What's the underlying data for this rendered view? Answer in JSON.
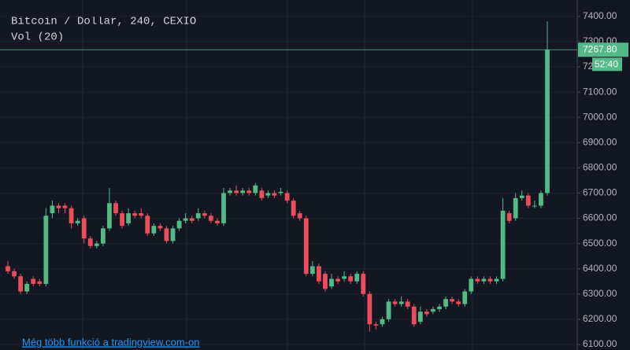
{
  "chart_data": {
    "type": "candlestick",
    "title": "Bitcoin / Dollar, 240, CEXIO",
    "subtitle": "Vol (20)",
    "footer": "Még több funkció a tradingview.com-on",
    "last_price_label": "7267.80",
    "countdown": "52:40",
    "up_color": "#53b987",
    "down_color": "#eb4d5c",
    "ylim": [
      6078,
      7465
    ],
    "yticks": [
      {
        "value": 6100,
        "label": "6100.00"
      },
      {
        "value": 6200,
        "label": "6200.00"
      },
      {
        "value": 6300,
        "label": "6300.00"
      },
      {
        "value": 6400,
        "label": "6400.00"
      },
      {
        "value": 6500,
        "label": "6500.00"
      },
      {
        "value": 6600,
        "label": "6600.00"
      },
      {
        "value": 6700,
        "label": "6700.00"
      },
      {
        "value": 6800,
        "label": "6800.00"
      },
      {
        "value": 6900,
        "label": "6900.00"
      },
      {
        "value": 7000,
        "label": "7000.00"
      },
      {
        "value": 7100,
        "label": "7100.00"
      },
      {
        "value": 7200,
        "label": "7200.00"
      },
      {
        "value": 7300,
        "label": "7300.00"
      },
      {
        "value": 7400,
        "label": "7400.00"
      }
    ],
    "open": [
      6410,
      6390,
      6370,
      6310,
      6360,
      6350,
      6340,
      6620,
      6650,
      6650,
      6640,
      6580,
      6600,
      6520,
      6490,
      6500,
      6560,
      6660,
      6620,
      6580,
      6620,
      6620,
      6610,
      6540,
      6570,
      6560,
      6510,
      6560,
      6590,
      6600,
      6600,
      6620,
      6610,
      6590,
      6580,
      6700,
      6710,
      6700,
      6710,
      6700,
      6710,
      6690,
      6700,
      6700,
      6700,
      6670,
      6620,
      6600,
      6380,
      6410,
      6380,
      6330,
      6360,
      6360,
      6370,
      6350,
      6380,
      6300,
      6180,
      6180,
      6200,
      6270,
      6260,
      6270,
      6250,
      6190,
      6230,
      6230,
      6240,
      6250,
      6280,
      6270,
      6260,
      6310,
      6360,
      6350,
      6360,
      6350,
      6360,
      6620,
      6600,
      6680,
      6690,
      6650,
      6650,
      6700
    ],
    "high": [
      6430,
      6400,
      6380,
      6350,
      6370,
      6360,
      6640,
      6670,
      6660,
      6660,
      6650,
      6600,
      6610,
      6530,
      6510,
      6570,
      6720,
      6670,
      6630,
      6640,
      6630,
      6640,
      6620,
      6580,
      6580,
      6570,
      6570,
      6600,
      6620,
      6610,
      6640,
      6630,
      6620,
      6600,
      6720,
      6720,
      6730,
      6720,
      6720,
      6740,
      6720,
      6710,
      6710,
      6720,
      6710,
      6680,
      6630,
      6610,
      6430,
      6420,
      6390,
      6380,
      6370,
      6390,
      6380,
      6390,
      6390,
      6310,
      6190,
      6210,
      6280,
      6280,
      6290,
      6280,
      6260,
      6250,
      6240,
      6250,
      6260,
      6290,
      6290,
      6280,
      6320,
      6370,
      6370,
      6370,
      6370,
      6370,
      6680,
      6630,
      6700,
      6710,
      6700,
      6670,
      6710,
      7380
    ],
    "low": [
      6380,
      6360,
      6300,
      6300,
      6330,
      6330,
      6330,
      6600,
      6620,
      6620,
      6560,
      6570,
      6500,
      6480,
      6480,
      6490,
      6550,
      6610,
      6560,
      6570,
      6600,
      6600,
      6530,
      6530,
      6550,
      6500,
      6500,
      6550,
      6580,
      6580,
      6590,
      6600,
      6580,
      6570,
      6570,
      6690,
      6690,
      6690,
      6690,
      6690,
      6670,
      6680,
      6680,
      6690,
      6660,
      6600,
      6590,
      6370,
      6370,
      6340,
      6310,
      6320,
      6340,
      6350,
      6340,
      6340,
      6290,
      6150,
      6160,
      6170,
      6190,
      6250,
      6250,
      6240,
      6170,
      6180,
      6210,
      6220,
      6230,
      6240,
      6260,
      6250,
      6250,
      6300,
      6340,
      6340,
      6340,
      6340,
      6350,
      6580,
      6590,
      6670,
      6640,
      6640,
      6640,
      6690
    ],
    "close": [
      6390,
      6370,
      6310,
      6340,
      6340,
      6340,
      6610,
      6650,
      6640,
      6640,
      6580,
      6590,
      6520,
      6490,
      6500,
      6560,
      6660,
      6620,
      6570,
      6620,
      6610,
      6610,
      6540,
      6570,
      6560,
      6510,
      6560,
      6590,
      6600,
      6590,
      6620,
      6610,
      6590,
      6580,
      6700,
      6710,
      6700,
      6710,
      6700,
      6730,
      6680,
      6700,
      6690,
      6705,
      6670,
      6610,
      6600,
      6380,
      6410,
      6350,
      6320,
      6360,
      6350,
      6370,
      6350,
      6380,
      6300,
      6180,
      6175,
      6200,
      6270,
      6260,
      6270,
      6250,
      6180,
      6230,
      6220,
      6240,
      6250,
      6280,
      6270,
      6260,
      6310,
      6360,
      6350,
      6360,
      6350,
      6360,
      6630,
      6590,
      6680,
      6690,
      6650,
      6650,
      6700,
      7267.8
    ]
  }
}
